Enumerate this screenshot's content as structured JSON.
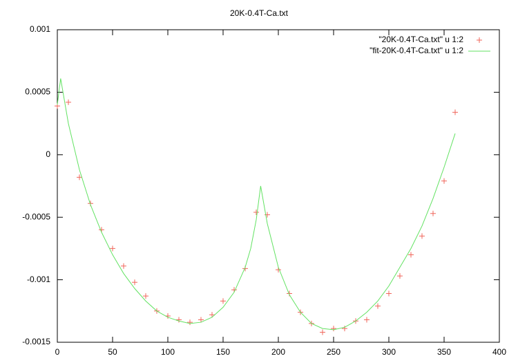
{
  "chart_data": {
    "type": "scatter",
    "title": "20K-0.4T-Ca.txt",
    "series": [
      {
        "name": "\"20K-0.4T-Ca.txt\" u 1:2",
        "color": "#f0655a",
        "style": "points",
        "x": [
          0,
          10,
          20,
          30,
          40,
          50,
          60,
          70,
          80,
          90,
          100,
          110,
          120,
          130,
          140,
          150,
          160,
          170,
          180,
          190,
          200,
          210,
          220,
          230,
          240,
          250,
          260,
          270,
          280,
          290,
          300,
          310,
          320,
          330,
          340,
          350,
          360
        ],
        "values": [
          0.00039,
          0.00042,
          -0.00018,
          -0.00039,
          -0.0006,
          -0.00075,
          -0.00089,
          -0.00102,
          -0.00113,
          -0.00125,
          -0.00129,
          -0.00132,
          -0.00134,
          -0.00132,
          -0.00128,
          -0.00117,
          -0.00108,
          -0.00091,
          -0.00046,
          -0.00048,
          -0.00092,
          -0.00111,
          -0.00126,
          -0.00135,
          -0.00142,
          -0.00139,
          -0.00139,
          -0.00133,
          -0.00132,
          -0.00121,
          -0.00111,
          -0.00097,
          -0.0008,
          -0.00065,
          -0.00047,
          -0.00021,
          0.00034
        ]
      },
      {
        "name": "\"fit-20K-0.4T-Ca.txt\" u 1:2",
        "color": "#62e262",
        "style": "lines",
        "x": [
          0,
          3,
          10,
          20,
          30,
          40,
          50,
          60,
          70,
          80,
          90,
          100,
          110,
          120,
          130,
          140,
          150,
          160,
          170,
          175,
          180,
          184,
          190,
          200,
          210,
          220,
          230,
          240,
          250,
          260,
          270,
          280,
          290,
          300,
          310,
          320,
          330,
          340,
          350,
          360
        ],
        "values": [
          0.0004,
          0.00061,
          0.00025,
          -0.00012,
          -0.0004,
          -0.00062,
          -0.0008,
          -0.00095,
          -0.00107,
          -0.00117,
          -0.00125,
          -0.0013,
          -0.00133,
          -0.00135,
          -0.00134,
          -0.0013,
          -0.00122,
          -0.0011,
          -0.0009,
          -0.00075,
          -0.00052,
          -0.00025,
          -0.00055,
          -0.0009,
          -0.00112,
          -0.00126,
          -0.00135,
          -0.00139,
          -0.0014,
          -0.00138,
          -0.00133,
          -0.00126,
          -0.00117,
          -0.00105,
          -0.0009,
          -0.00075,
          -0.00057,
          -0.00035,
          -0.0001,
          0.00017
        ]
      }
    ],
    "xlim": [
      0,
      400
    ],
    "xticks": [
      0,
      50,
      100,
      150,
      200,
      250,
      300,
      350,
      400
    ],
    "ylim": [
      -0.0015,
      0.001
    ],
    "yticks": [
      -0.0015,
      -0.001,
      -0.0005,
      0,
      0.0005,
      0.001
    ],
    "legend": "top-right"
  }
}
